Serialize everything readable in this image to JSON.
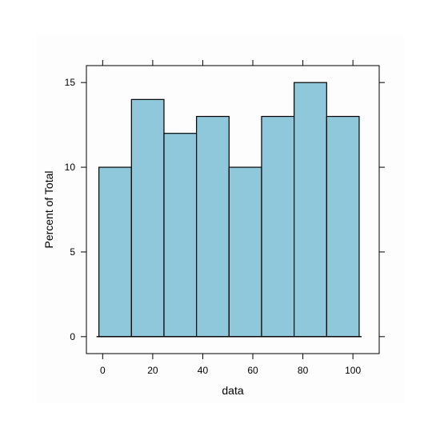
{
  "chart_data": {
    "type": "bar",
    "title": "",
    "xlabel": "data",
    "ylabel": "Percent of Total",
    "xlim": [
      -6.5,
      110.5
    ],
    "ylim": [
      -1,
      16
    ],
    "bins": [
      {
        "x0": -1.5,
        "x1": 11.5,
        "value": 10
      },
      {
        "x0": 11.5,
        "x1": 24.5,
        "value": 14
      },
      {
        "x0": 24.5,
        "x1": 37.5,
        "value": 12
      },
      {
        "x0": 37.5,
        "x1": 50.5,
        "value": 13
      },
      {
        "x0": 50.5,
        "x1": 63.5,
        "value": 10
      },
      {
        "x0": 63.5,
        "x1": 76.5,
        "value": 13
      },
      {
        "x0": 76.5,
        "x1": 89.5,
        "value": 15
      },
      {
        "x0": 89.5,
        "x1": 102.5,
        "value": 13
      }
    ],
    "xticks": [
      0,
      20,
      40,
      60,
      80,
      100
    ],
    "xtick_labels": [
      "0",
      "20",
      "40",
      "60",
      "80",
      "100"
    ],
    "yticks": [
      0,
      5,
      10,
      15
    ],
    "ytick_labels": [
      "0",
      "5",
      "10",
      "15"
    ],
    "bar_color": "#8ec8da",
    "panel_background": "#fdfdfd",
    "grid": false
  }
}
